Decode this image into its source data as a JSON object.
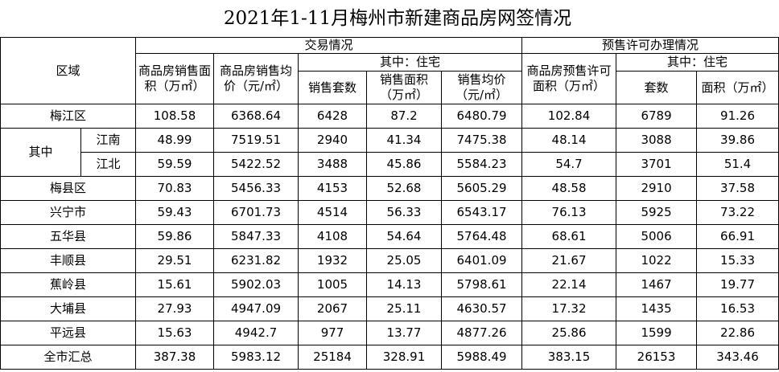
{
  "title": "2021年1-11月梅州市新建商品房网签情况",
  "header": {
    "region": "区域",
    "trade": "交易情况",
    "presale": "预售许可办理情况",
    "sales_area": "商品房销售面积（万㎡）",
    "sales_price": "商品房销售均价（元/㎡）",
    "trade_residential": "其中：住宅",
    "res_units": "销售套数",
    "res_area": "销售面积（万㎡）",
    "res_price": "销售均价（元/㎡）",
    "presale_area": "商品房预售许可面积（万㎡）",
    "presale_residential": "其中：住宅",
    "presale_units": "套数",
    "presale_res_area": "面积（万㎡）"
  },
  "rows": [
    {
      "label": "梅江区",
      "values": [
        108.58,
        6368.64,
        6428,
        87.2,
        6480.79,
        102.84,
        6789,
        91.26
      ]
    },
    {
      "group": "其中",
      "children": [
        {
          "label": "江南",
          "values": [
            48.99,
            7519.51,
            2940,
            41.34,
            7475.38,
            48.14,
            3088,
            39.86
          ]
        },
        {
          "label": "江北",
          "values": [
            59.59,
            5422.52,
            3488,
            45.86,
            5584.23,
            54.7,
            3701,
            51.4
          ]
        }
      ]
    },
    {
      "label": "梅县区",
      "values": [
        70.83,
        5456.33,
        4153,
        52.68,
        5605.29,
        48.58,
        2910,
        37.58
      ]
    },
    {
      "label": "兴宁市",
      "values": [
        59.43,
        6701.73,
        4514,
        56.33,
        6543.17,
        76.13,
        5925,
        73.22
      ]
    },
    {
      "label": "五华县",
      "values": [
        59.86,
        5847.33,
        4108,
        54.64,
        5764.48,
        68.61,
        5006,
        66.91
      ]
    },
    {
      "label": "丰顺县",
      "values": [
        29.51,
        6231.82,
        1932,
        25.05,
        6401.09,
        21.67,
        1022,
        15.33
      ]
    },
    {
      "label": "蕉岭县",
      "values": [
        15.61,
        5902.03,
        1005,
        14.13,
        5798.61,
        22.14,
        1467,
        19.77
      ]
    },
    {
      "label": "大埔县",
      "values": [
        27.93,
        4947.09,
        2067,
        25.11,
        4630.57,
        17.32,
        1435,
        16.53
      ]
    },
    {
      "label": "平远县",
      "values": [
        15.63,
        4942.7,
        977,
        13.77,
        4877.26,
        25.86,
        1599,
        22.86
      ]
    },
    {
      "label": "全市汇总",
      "values": [
        387.38,
        5983.12,
        25184,
        328.91,
        5988.49,
        383.15,
        26153,
        343.46
      ]
    }
  ]
}
